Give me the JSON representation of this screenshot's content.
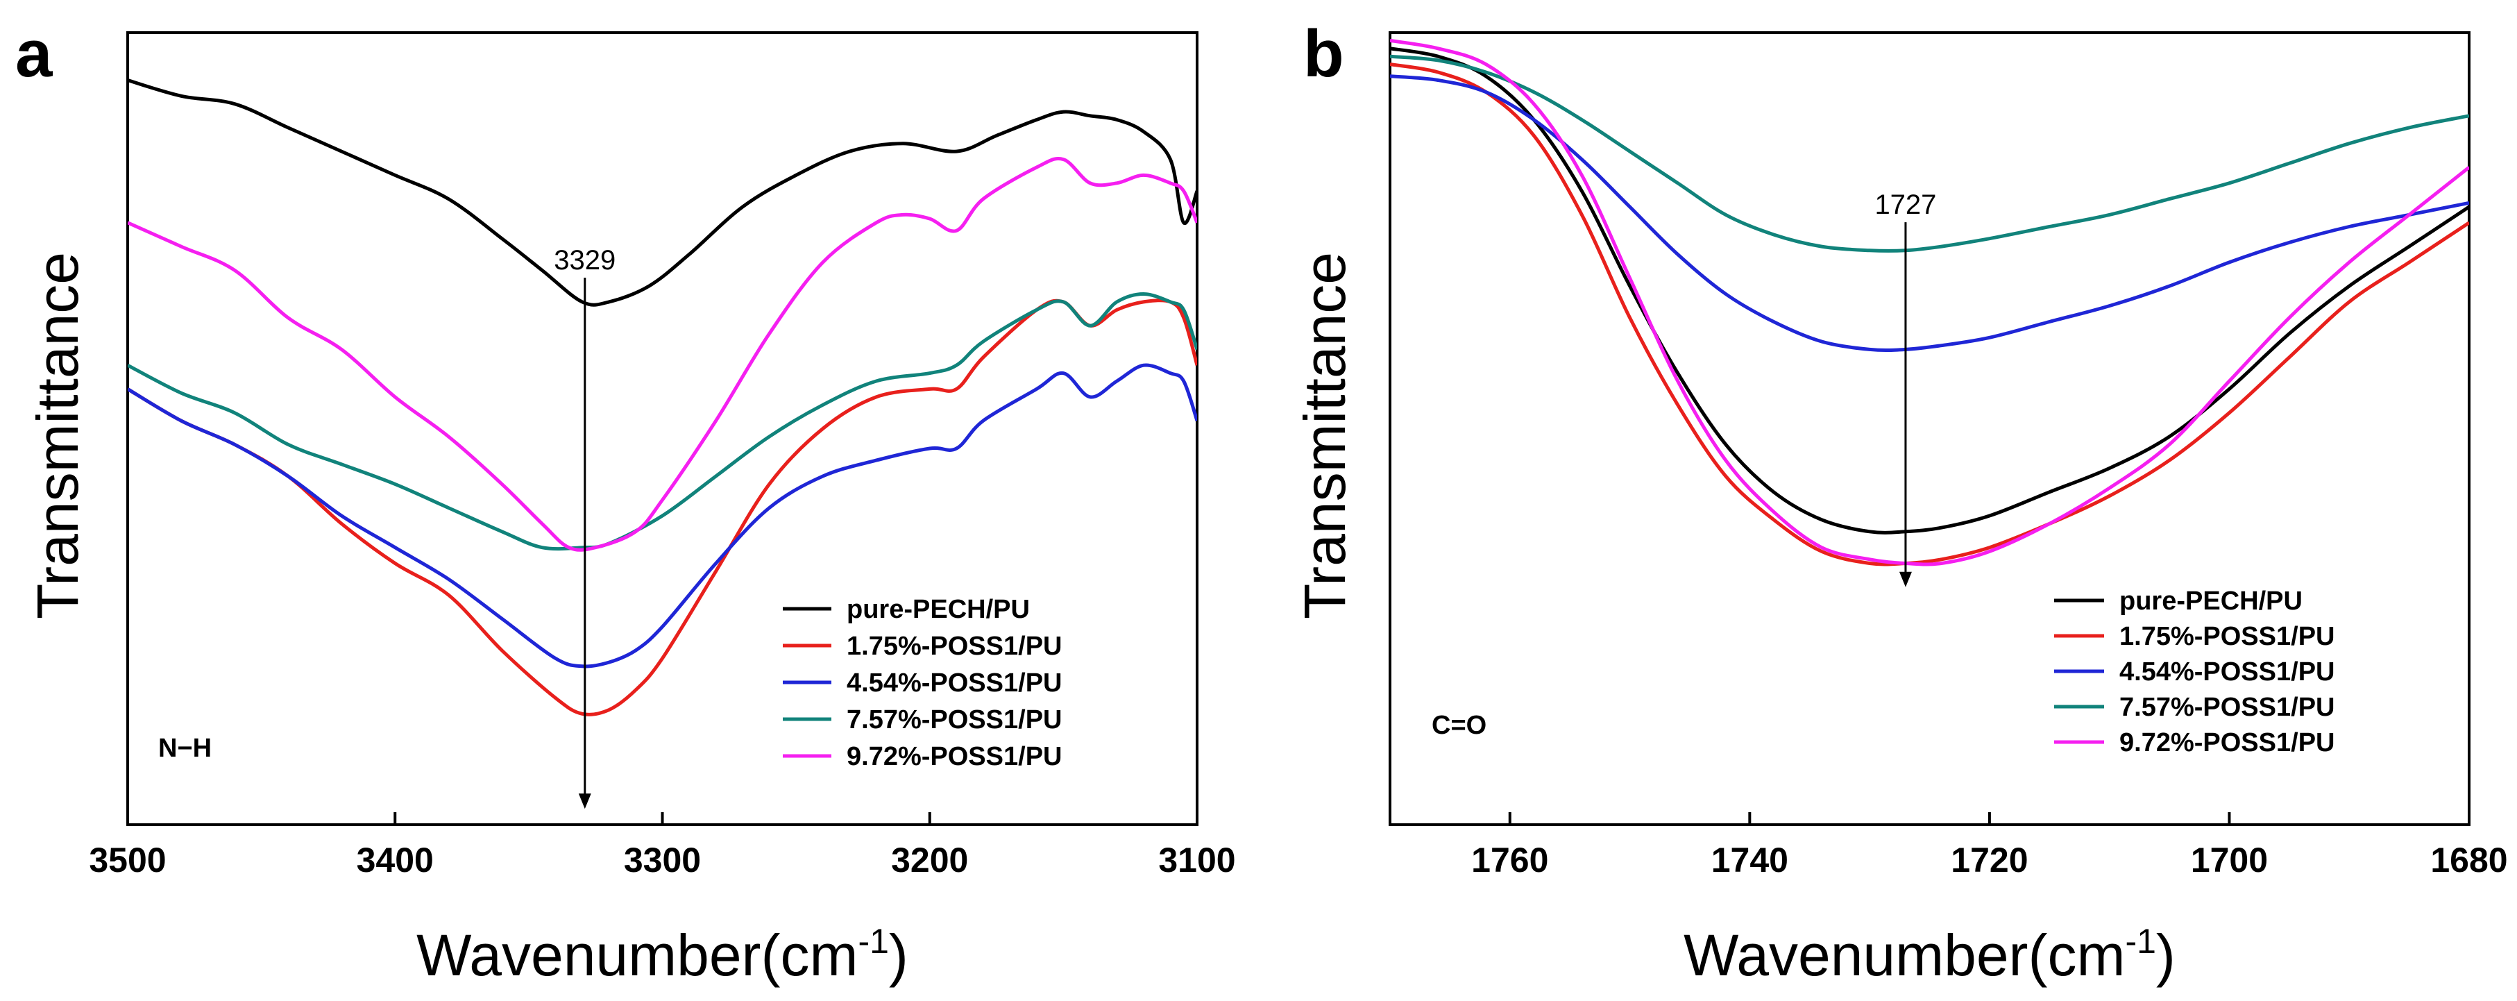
{
  "chart_data": [
    {
      "type": "line",
      "panel": "a",
      "xlabel": "Wavenumber(cm",
      "xlabel_sup": "-1",
      "xlabel_close": ")",
      "ylabel": "Transmittance",
      "xlim": [
        3500,
        3100
      ],
      "ylim": [
        0,
        100
      ],
      "x_ticks": [
        3500,
        3400,
        3300,
        3200,
        3100
      ],
      "x_tick_labels": [
        "3500",
        "3400",
        "3300",
        "3200",
        "3100"
      ],
      "bond_label": "N−H",
      "peak": {
        "x": 3329,
        "label": "3329",
        "arrow_from": 66,
        "arrow_to": 2
      },
      "series": [
        {
          "name": "pure-PECH/PU",
          "color": "#000000",
          "x": [
            3500,
            3480,
            3460,
            3440,
            3420,
            3400,
            3380,
            3360,
            3345,
            3330,
            3320,
            3305,
            3290,
            3270,
            3250,
            3230,
            3210,
            3190,
            3175,
            3160,
            3150,
            3140,
            3130,
            3120,
            3110,
            3105,
            3100
          ],
          "y": [
            94,
            92,
            91,
            88,
            85,
            82,
            79,
            74,
            70,
            66,
            66,
            68,
            72,
            78,
            82,
            85,
            86,
            85,
            87,
            89,
            90,
            89.5,
            89,
            87.5,
            84,
            76,
            80
          ]
        },
        {
          "name": "1.75%-POSS1/PU",
          "color": "#e8201c",
          "x": [
            3500,
            3480,
            3460,
            3440,
            3420,
            3400,
            3380,
            3360,
            3340,
            3330,
            3320,
            3310,
            3300,
            3280,
            3260,
            3240,
            3220,
            3200,
            3190,
            3180,
            3160,
            3150,
            3140,
            3130,
            3120,
            3110,
            3105,
            3100
          ],
          "y": [
            55,
            51,
            48,
            44,
            38,
            33,
            29,
            22,
            16,
            14,
            14.5,
            17,
            21,
            32,
            43,
            50,
            54,
            55,
            55,
            59,
            65,
            66,
            63,
            65,
            66,
            66,
            64,
            58
          ]
        },
        {
          "name": "4.54%-POSS1/PU",
          "color": "#1f26d6",
          "x": [
            3500,
            3480,
            3460,
            3440,
            3420,
            3400,
            3380,
            3360,
            3340,
            3330,
            3320,
            3310,
            3300,
            3280,
            3260,
            3240,
            3220,
            3200,
            3190,
            3180,
            3160,
            3150,
            3140,
            3130,
            3120,
            3110,
            3105,
            3100
          ],
          "y": [
            55,
            51,
            48,
            44,
            39,
            35,
            31,
            26,
            21,
            20,
            20.5,
            22,
            25,
            33,
            40,
            44,
            46,
            47.5,
            47.5,
            51,
            55,
            57,
            54,
            56,
            58,
            57,
            56,
            51
          ]
        },
        {
          "name": "7.57%-POSS1/PU",
          "color": "#11837b",
          "x": [
            3500,
            3480,
            3460,
            3440,
            3420,
            3400,
            3380,
            3360,
            3345,
            3330,
            3320,
            3300,
            3280,
            3260,
            3240,
            3220,
            3200,
            3190,
            3180,
            3160,
            3150,
            3140,
            3130,
            3120,
            3110,
            3105,
            3100
          ],
          "y": [
            58,
            54.5,
            52,
            48,
            45.5,
            43,
            40,
            37,
            35,
            35,
            35.5,
            39,
            44,
            49,
            53,
            56,
            57,
            58,
            61,
            65,
            66,
            63,
            66,
            67,
            66,
            65,
            60
          ]
        },
        {
          "name": "9.72%-POSS1/PU",
          "color": "#f51ff0",
          "x": [
            3500,
            3480,
            3460,
            3440,
            3420,
            3400,
            3380,
            3360,
            3345,
            3335,
            3325,
            3310,
            3300,
            3280,
            3260,
            3240,
            3220,
            3210,
            3200,
            3190,
            3180,
            3160,
            3150,
            3140,
            3130,
            3120,
            3110,
            3105,
            3100
          ],
          "y": [
            76,
            73,
            70,
            64,
            60,
            54,
            49,
            43,
            38,
            35,
            35,
            37,
            41,
            51,
            62,
            71,
            76,
            77,
            76.5,
            75,
            79,
            83,
            84,
            81,
            81,
            82,
            81,
            80,
            76
          ]
        }
      ]
    },
    {
      "type": "line",
      "panel": "b",
      "xlabel": "Wavenumber(cm",
      "xlabel_sup": "-1",
      "xlabel_close": ")",
      "ylabel": "Transmittance",
      "xlim": [
        1770,
        1680
      ],
      "ylim": [
        0,
        100
      ],
      "x_ticks": [
        1760,
        1740,
        1720,
        1700,
        1680
      ],
      "x_tick_labels": [
        "1760",
        "1740",
        "1720",
        "1700",
        "1680"
      ],
      "bond_label": "C=O",
      "peak": {
        "x": 1727,
        "label": "1727",
        "arrow_from": 73,
        "arrow_to": 30
      },
      "series": [
        {
          "name": "pure-PECH/PU",
          "color": "#000000",
          "x": [
            1770,
            1766,
            1762,
            1758,
            1754,
            1750,
            1746,
            1742,
            1738,
            1734,
            1730,
            1727,
            1724,
            1720,
            1715,
            1710,
            1705,
            1700,
            1695,
            1690,
            1685,
            1680
          ],
          "y": [
            98,
            97,
            94.5,
            89,
            80,
            68,
            57,
            48,
            42,
            38.5,
            37,
            37,
            37.5,
            39,
            42,
            45,
            49,
            55,
            62,
            68,
            73,
            78
          ]
        },
        {
          "name": "1.75%-POSS1/PU",
          "color": "#e8201c",
          "x": [
            1770,
            1766,
            1762,
            1758,
            1754,
            1750,
            1746,
            1742,
            1738,
            1734,
            1730,
            1727,
            1724,
            1720,
            1715,
            1710,
            1705,
            1700,
            1695,
            1690,
            1685,
            1680
          ],
          "y": [
            96,
            95,
            92.5,
            87,
            77,
            64,
            53,
            44,
            38.5,
            34.5,
            33,
            33,
            33.5,
            35,
            38,
            41.5,
            46,
            52,
            59,
            66,
            71,
            76
          ]
        },
        {
          "name": "4.54%-POSS1/PU",
          "color": "#1f26d6",
          "x": [
            1770,
            1766,
            1762,
            1758,
            1754,
            1750,
            1746,
            1742,
            1738,
            1734,
            1730,
            1727,
            1724,
            1720,
            1715,
            1710,
            1705,
            1700,
            1695,
            1690,
            1685,
            1680
          ],
          "y": [
            94.5,
            94,
            92.5,
            89,
            84,
            78,
            72,
            67,
            63.5,
            61,
            60,
            60,
            60.5,
            61.5,
            63.5,
            65.5,
            68,
            71,
            73.5,
            75.5,
            77,
            78.5
          ]
        },
        {
          "name": "7.57%-POSS1/PU",
          "color": "#11837b",
          "x": [
            1770,
            1766,
            1762,
            1758,
            1754,
            1750,
            1746,
            1742,
            1738,
            1734,
            1730,
            1727,
            1724,
            1720,
            1715,
            1710,
            1705,
            1700,
            1695,
            1690,
            1685,
            1680
          ],
          "y": [
            97,
            96.5,
            95,
            92.5,
            89,
            85,
            81,
            77,
            74.5,
            73,
            72.5,
            72.5,
            73,
            74,
            75.5,
            77,
            79,
            81,
            83.5,
            86,
            88,
            89.5
          ]
        },
        {
          "name": "9.72%-POSS1/PU",
          "color": "#f51ff0",
          "x": [
            1770,
            1766,
            1762,
            1758,
            1754,
            1750,
            1746,
            1742,
            1738,
            1734,
            1730,
            1727,
            1724,
            1720,
            1715,
            1710,
            1705,
            1700,
            1695,
            1690,
            1685,
            1680
          ],
          "y": [
            99,
            98,
            96,
            91,
            82,
            69,
            56,
            46,
            39.5,
            35,
            33.5,
            33,
            33,
            34.5,
            38,
            42.5,
            48,
            56,
            64,
            71,
            77,
            83
          ]
        }
      ]
    }
  ]
}
